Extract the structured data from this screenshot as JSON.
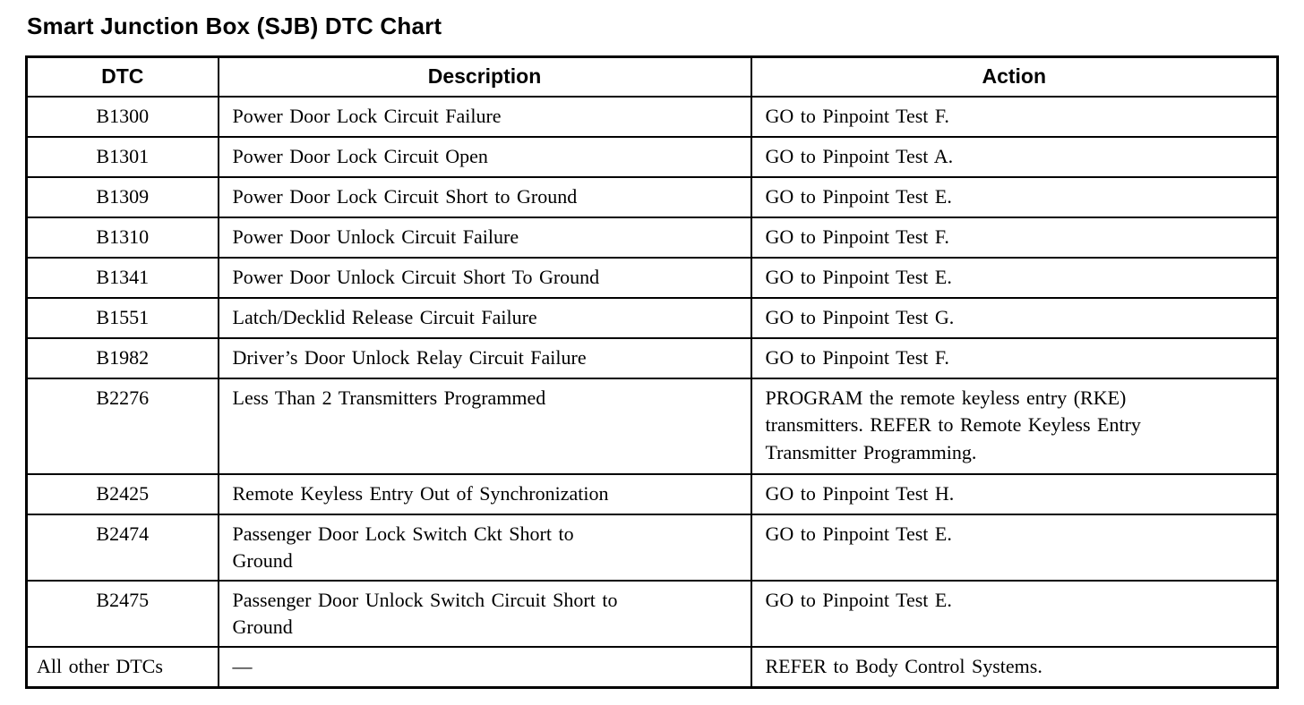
{
  "page": {
    "title": "Smart Junction Box (SJB) DTC Chart"
  },
  "table": {
    "headers": {
      "dtc": "DTC",
      "description": "Description",
      "action": "Action"
    },
    "rows": [
      {
        "dtc": "B1300",
        "description": "Power Door Lock Circuit Failure",
        "action": "GO to Pinpoint Test F."
      },
      {
        "dtc": "B1301",
        "description": "Power Door Lock Circuit Open",
        "action": "GO to Pinpoint Test A."
      },
      {
        "dtc": "B1309",
        "description": "Power Door Lock Circuit Short to Ground",
        "action": "GO to Pinpoint Test E."
      },
      {
        "dtc": "B1310",
        "description": "Power Door Unlock Circuit Failure",
        "action": "GO to Pinpoint Test F."
      },
      {
        "dtc": "B1341",
        "description": "Power Door Unlock Circuit Short To Ground",
        "action": "GO to Pinpoint Test E."
      },
      {
        "dtc": "B1551",
        "description": "Latch/Decklid Release Circuit Failure",
        "action": "GO to Pinpoint Test G."
      },
      {
        "dtc": "B1982",
        "description": "Driver’s Door Unlock Relay Circuit Failure",
        "action": "GO to Pinpoint Test F."
      },
      {
        "dtc": "B2276",
        "description": "Less Than 2 Transmitters Programmed",
        "action": "PROGRAM the remote keyless entry (RKE)\ntransmitters. REFER to Remote Keyless Entry\nTransmitter Programming."
      },
      {
        "dtc": "B2425",
        "description": "Remote Keyless Entry Out of Synchronization",
        "action": "GO to Pinpoint Test H."
      },
      {
        "dtc": "B2474",
        "description": "Passenger Door Lock Switch Ckt Short to\nGround",
        "action": "GO to Pinpoint Test E."
      },
      {
        "dtc": "B2475",
        "description": "Passenger Door Unlock Switch Circuit Short to\nGround",
        "action": "GO to Pinpoint Test E."
      },
      {
        "dtc": "All other DTCs",
        "description": "—",
        "action": "REFER to Body Control Systems."
      }
    ]
  }
}
